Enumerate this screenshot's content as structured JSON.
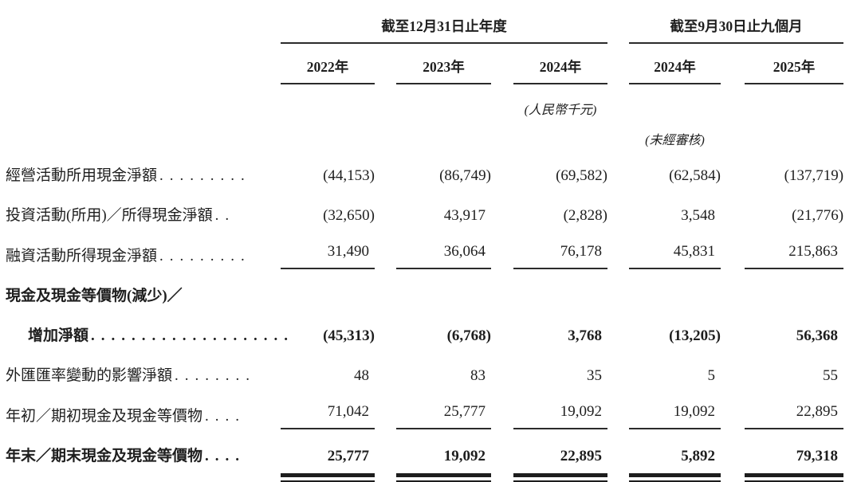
{
  "header": {
    "group1": {
      "label": "截至12月31日止年度",
      "years": [
        "2022年",
        "2023年",
        "2024年"
      ]
    },
    "group2": {
      "label": "截至9月30日止九個月",
      "years": [
        "2024年",
        "2025年"
      ]
    },
    "unit_note": "(人民幣千元)",
    "unaudited_note": "(未經審核)"
  },
  "rows": [
    {
      "label": "經營活動所用現金淨額",
      "leader": ".........",
      "values": [
        "(44,153)",
        "(86,749)",
        "(69,582)",
        "(62,584)",
        "(137,719)"
      ]
    },
    {
      "label": "投資活動(所用)／所得現金淨額",
      "leader": "..",
      "values": [
        "(32,650)",
        "43,917",
        "(2,828)",
        "3,548",
        "(21,776)"
      ]
    },
    {
      "label": "融資活動所得現金淨額",
      "leader": ".........",
      "values": [
        "31,490",
        "36,064",
        "76,178",
        "45,831",
        "215,863"
      ]
    },
    {
      "label": "現金及現金等價物(減少)／",
      "leader": "",
      "values": [
        "",
        "",
        "",
        "",
        ""
      ]
    },
    {
      "label": "增加淨額",
      "leader": "....................",
      "values": [
        "(45,313)",
        "(6,768)",
        "3,768",
        "(13,205)",
        "56,368"
      ]
    },
    {
      "label": "外匯匯率變動的影響淨額",
      "leader": "........",
      "values": [
        "48",
        "83",
        "35",
        "5",
        "55"
      ]
    },
    {
      "label": "年初／期初現金及現金等價物",
      "leader": "....",
      "values": [
        "71,042",
        "25,777",
        "19,092",
        "19,092",
        "22,895"
      ]
    },
    {
      "label": "年末／期末現金及現金等價物",
      "leader": "....",
      "values": [
        "25,777",
        "19,092",
        "22,895",
        "5,892",
        "79,318"
      ]
    }
  ]
}
